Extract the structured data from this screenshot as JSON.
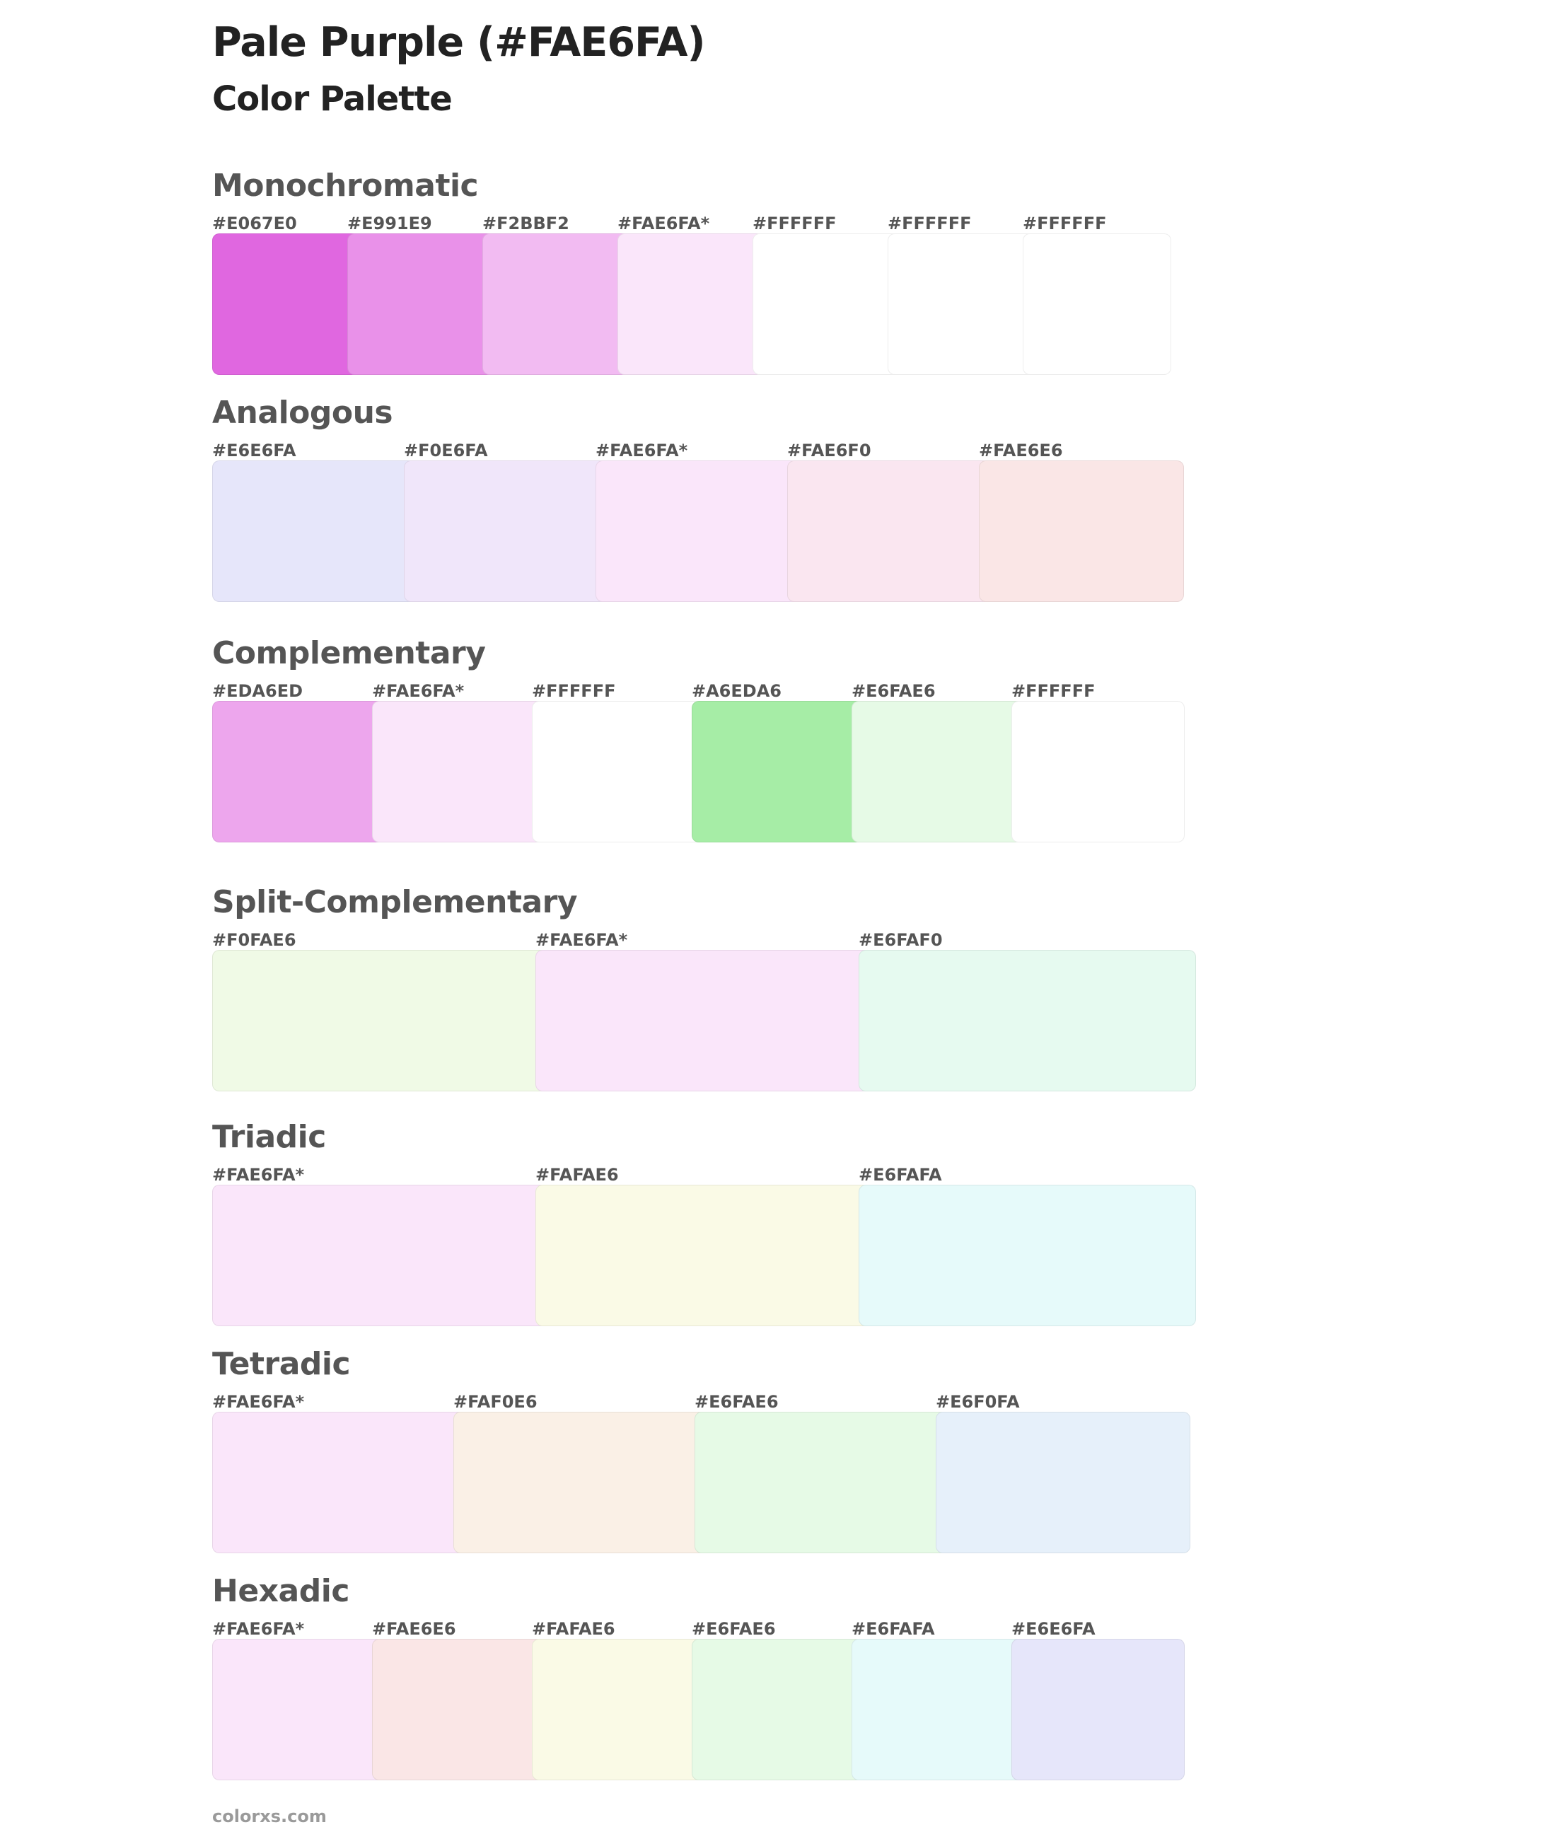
{
  "page": {
    "title": "Pale Purple (#FAE6FA)",
    "subtitle": "Color Palette",
    "footer": "colorxs.com"
  },
  "sections": [
    {
      "name": "Monochromatic",
      "swatches": [
        {
          "label": "#E067E0",
          "color": "#E067E0"
        },
        {
          "label": "#E991E9",
          "color": "#E991E9"
        },
        {
          "label": "#F2BBF2",
          "color": "#F2BBF2"
        },
        {
          "label": "#FAE6FA*",
          "color": "#FAE6FA"
        },
        {
          "label": "#FFFFFF",
          "color": "#FFFFFF"
        },
        {
          "label": "#FFFFFF",
          "color": "#FFFFFF"
        },
        {
          "label": "#FFFFFF",
          "color": "#FFFFFF"
        }
      ]
    },
    {
      "name": "Analogous",
      "swatches": [
        {
          "label": "#E6E6FA",
          "color": "#E6E6FA"
        },
        {
          "label": "#F0E6FA",
          "color": "#F0E6FA"
        },
        {
          "label": "#FAE6FA*",
          "color": "#FAE6FA"
        },
        {
          "label": "#FAE6F0",
          "color": "#FAE6F0"
        },
        {
          "label": "#FAE6E6",
          "color": "#FAE6E6"
        }
      ]
    },
    {
      "name": "Complementary",
      "swatches": [
        {
          "label": "#EDA6ED",
          "color": "#EDA6ED"
        },
        {
          "label": "#FAE6FA*",
          "color": "#FAE6FA"
        },
        {
          "label": "#FFFFFF",
          "color": "#FFFFFF"
        },
        {
          "label": "#A6EDA6",
          "color": "#A6EDA6"
        },
        {
          "label": "#E6FAE6",
          "color": "#E6FAE6"
        },
        {
          "label": "#FFFFFF",
          "color": "#FFFFFF"
        }
      ]
    },
    {
      "name": "Split-Complementary",
      "swatches": [
        {
          "label": "#F0FAE6",
          "color": "#F0FAE6"
        },
        {
          "label": "#FAE6FA*",
          "color": "#FAE6FA"
        },
        {
          "label": "#E6FAF0",
          "color": "#E6FAF0"
        }
      ]
    },
    {
      "name": "Triadic",
      "swatches": [
        {
          "label": "#FAE6FA*",
          "color": "#FAE6FA"
        },
        {
          "label": "#FAFAE6",
          "color": "#FAFAE6"
        },
        {
          "label": "#E6FAFA",
          "color": "#E6FAFA"
        }
      ]
    },
    {
      "name": "Tetradic",
      "swatches": [
        {
          "label": "#FAE6FA*",
          "color": "#FAE6FA"
        },
        {
          "label": "#FAF0E6",
          "color": "#FAF0E6"
        },
        {
          "label": "#E6FAE6",
          "color": "#E6FAE6"
        },
        {
          "label": "#E6F0FA",
          "color": "#E6F0FA"
        }
      ]
    },
    {
      "name": "Hexadic",
      "swatches": [
        {
          "label": "#FAE6FA*",
          "color": "#FAE6FA"
        },
        {
          "label": "#FAE6E6",
          "color": "#FAE6E6"
        },
        {
          "label": "#FAFAE6",
          "color": "#FAFAE6"
        },
        {
          "label": "#E6FAE6",
          "color": "#E6FAE6"
        },
        {
          "label": "#E6FAFA",
          "color": "#E6FAFA"
        },
        {
          "label": "#E6E6FA",
          "color": "#E6E6FA"
        }
      ]
    }
  ]
}
